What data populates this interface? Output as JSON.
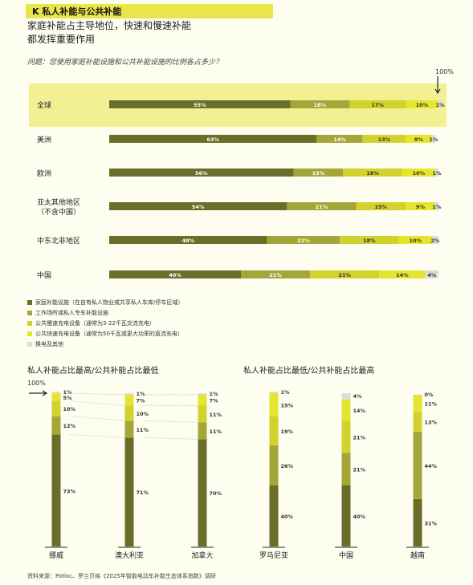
{
  "header": {
    "title": "K  私人补能与公共补能",
    "subtitle_1": "家庭补能占主导地位，快速和慢速补能",
    "subtitle_2": "都发挥重要作用",
    "question": "问题：您使用家庭补能设施和公共补能设施的比例各占多少？"
  },
  "colors": [
    "#6b6e28",
    "#a5a63a",
    "#d2d22e",
    "#e5e530",
    "#dcdcdc"
  ],
  "chart_data": [
    {
      "type": "bar",
      "orientation": "horizontal-stacked",
      "axis_top_label": "100%",
      "categories": [
        "全球",
        "美洲",
        "欧洲",
        "亚太其他地区\n（不含中国）",
        "中东北非地区",
        "中国"
      ],
      "series": [
        {
          "name": "家庭补能设施（在自有私人物业或共享私人车库/停车区域）",
          "values": [
            55,
            63,
            56,
            54,
            48,
            40
          ]
        },
        {
          "name": "工作场所或私人专车补能设施",
          "values": [
            18,
            14,
            15,
            21,
            22,
            21
          ]
        },
        {
          "name": "公共慢速充电设备（通常为3-22千瓦交流充电）",
          "values": [
            17,
            13,
            18,
            15,
            18,
            21
          ]
        },
        {
          "name": "公共快速充电设备（通常为50千瓦或更大功率的直流充电）",
          "values": [
            10,
            8,
            10,
            9,
            10,
            14
          ]
        },
        {
          "name": "换电及其他",
          "values": [
            1,
            1,
            1,
            1,
            2,
            4
          ]
        }
      ]
    },
    {
      "type": "bar",
      "orientation": "vertical-stacked",
      "title": "私人补能占比最高/公共补能占比最低",
      "axis_top_label": "100%",
      "categories": [
        "挪威",
        "澳大利亚",
        "加拿大"
      ],
      "series": [
        {
          "name": "家庭补能设施",
          "values": [
            73,
            71,
            70
          ]
        },
        {
          "name": "工作场所或私人专车补能设施",
          "values": [
            12,
            11,
            11
          ]
        },
        {
          "name": "公共慢速充电设备",
          "values": [
            10,
            10,
            11
          ]
        },
        {
          "name": "公共快速充电设备",
          "values": [
            5,
            7,
            7
          ]
        },
        {
          "name": "换电及其他",
          "values": [
            1,
            1,
            1
          ]
        }
      ]
    },
    {
      "type": "bar",
      "orientation": "vertical-stacked",
      "title": "私人补能占比最低/公共补能占比最高",
      "categories": [
        "罗马尼亚",
        "中国",
        "越南"
      ],
      "series": [
        {
          "name": "家庭补能设施",
          "values": [
            40,
            40,
            31
          ]
        },
        {
          "name": "工作场所或私人专车补能设施",
          "values": [
            26,
            21,
            44
          ]
        },
        {
          "name": "公共慢速充电设备",
          "values": [
            19,
            21,
            13
          ]
        },
        {
          "name": "公共快速充电设备",
          "values": [
            15,
            14,
            11
          ]
        },
        {
          "name": "换电及其他",
          "values": [
            1,
            4,
            0
          ]
        }
      ]
    }
  ],
  "source": "资料来源：Potloc、罗兰贝格《2025年智能电动车补能生态体系指数》调研"
}
